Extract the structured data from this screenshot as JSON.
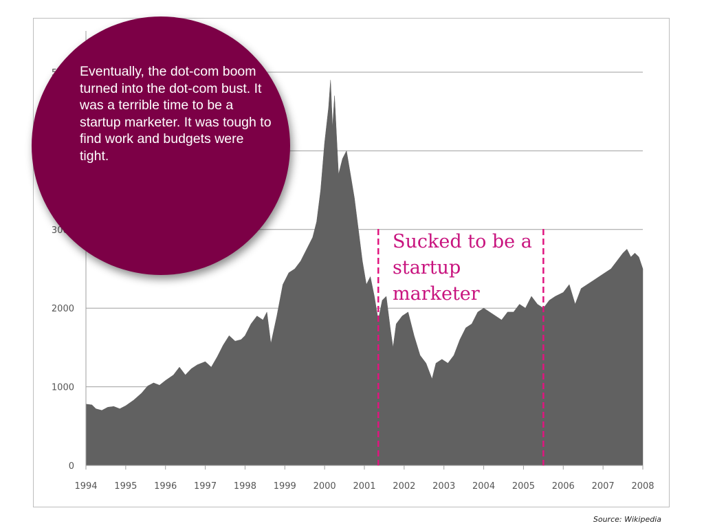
{
  "callout": {
    "text": "Eventually, the dot-com boom turned into the dot-com bust. It was a terrible time to be a startup marketer. It was tough to find work and budgets were tight.",
    "background_color": "#7c0046",
    "text_color": "#ffffff"
  },
  "annotation": {
    "text": "Sucked to be a startup marketer",
    "color": "#c8137e"
  },
  "source": {
    "text": "Source: Wikipedia"
  },
  "chart_data": {
    "type": "area",
    "title": "",
    "xlabel": "",
    "ylabel": "",
    "xlim": [
      1994,
      2008
    ],
    "ylim": [
      0,
      5000
    ],
    "grid": true,
    "fill_color": "#616161",
    "x_ticks": [
      "1994",
      "1995",
      "1996",
      "1997",
      "1998",
      "1999",
      "2000",
      "2001",
      "2002",
      "2003",
      "2004",
      "2005",
      "2006",
      "2007",
      "2008"
    ],
    "y_ticks": [
      "0",
      "1000",
      "2000",
      "3000",
      "4000",
      "5000"
    ],
    "series": [
      {
        "x": [
          1994.0,
          1994.15,
          1994.25,
          1994.4,
          1994.55,
          1994.7,
          1994.85,
          1995.0,
          1995.2,
          1995.4,
          1995.55,
          1995.7,
          1995.85,
          1996.0,
          1996.2,
          1996.35,
          1996.5,
          1996.65,
          1996.8,
          1997.0,
          1997.15,
          1997.3,
          1997.45,
          1997.6,
          1997.75,
          1997.9,
          1998.0,
          1998.15,
          1998.3,
          1998.45,
          1998.55,
          1998.65,
          1998.8,
          1998.95,
          1999.1,
          1999.25,
          1999.4,
          1999.55,
          1999.7,
          1999.8,
          1999.9,
          2000.0,
          2000.1,
          2000.15,
          2000.2,
          2000.25,
          2000.35,
          2000.45,
          2000.55,
          2000.65,
          2000.75,
          2000.85,
          2000.95,
          2001.05,
          2001.15,
          2001.25,
          2001.35,
          2001.45,
          2001.55,
          2001.65,
          2001.72,
          2001.8,
          2001.95,
          2002.1,
          2002.25,
          2002.4,
          2002.55,
          2002.7,
          2002.8,
          2002.95,
          2003.1,
          2003.25,
          2003.4,
          2003.55,
          2003.7,
          2003.85,
          2004.0,
          2004.15,
          2004.3,
          2004.45,
          2004.6,
          2004.75,
          2004.9,
          2005.05,
          2005.2,
          2005.35,
          2005.5,
          2005.65,
          2005.8,
          2006.0,
          2006.15,
          2006.3,
          2006.45,
          2006.6,
          2006.75,
          2006.9,
          2007.05,
          2007.2,
          2007.35,
          2007.5,
          2007.6,
          2007.7,
          2007.8,
          2007.9,
          2008.0
        ],
        "values": [
          780,
          770,
          720,
          700,
          740,
          750,
          720,
          760,
          830,
          920,
          1010,
          1050,
          1020,
          1080,
          1150,
          1250,
          1150,
          1230,
          1280,
          1320,
          1250,
          1380,
          1530,
          1650,
          1580,
          1600,
          1650,
          1800,
          1900,
          1850,
          1950,
          1550,
          1900,
          2300,
          2450,
          2500,
          2600,
          2750,
          2900,
          3100,
          3500,
          4100,
          4550,
          4900,
          4300,
          4700,
          3700,
          3900,
          4000,
          3700,
          3400,
          3000,
          2600,
          2300,
          2400,
          2150,
          1850,
          2100,
          2150,
          1750,
          1500,
          1800,
          1900,
          1950,
          1650,
          1400,
          1300,
          1100,
          1300,
          1350,
          1300,
          1400,
          1600,
          1750,
          1800,
          1950,
          2000,
          1950,
          1900,
          1850,
          1950,
          1950,
          2050,
          2000,
          2150,
          2050,
          2000,
          2100,
          2150,
          2200,
          2300,
          2050,
          2250,
          2300,
          2350,
          2400,
          2450,
          2500,
          2600,
          2700,
          2750,
          2650,
          2700,
          2650,
          2500
        ]
      }
    ],
    "annotations": [
      {
        "type": "vline",
        "x": 2001.35,
        "color": "#e0157f",
        "style": "dashed"
      },
      {
        "type": "vline",
        "x": 2005.5,
        "color": "#e0157f",
        "style": "dashed"
      }
    ]
  }
}
